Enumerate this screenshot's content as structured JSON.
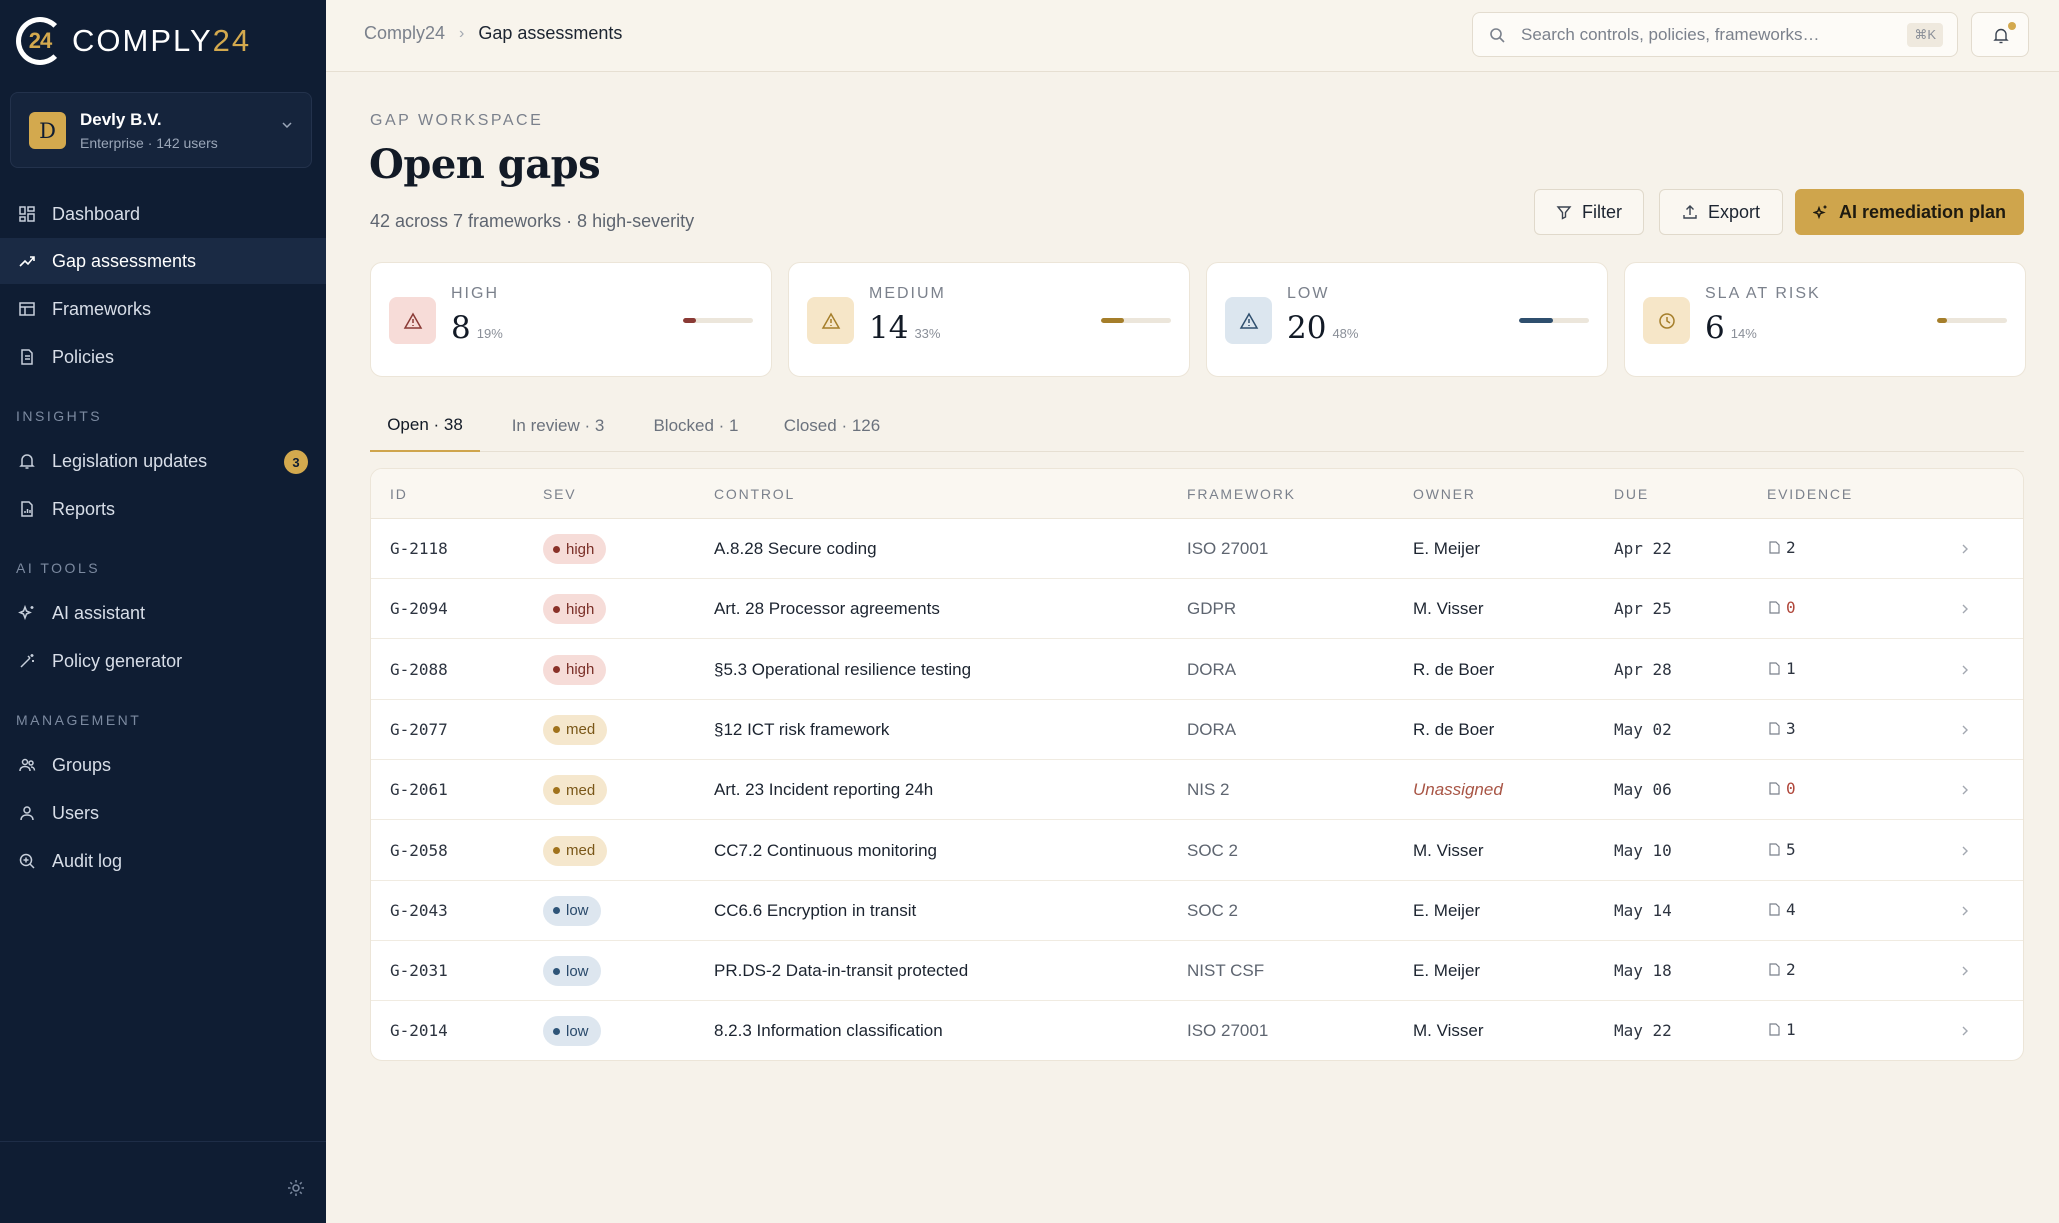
{
  "brand": {
    "mark": "24",
    "name_main": "COMPLY",
    "name_accent": "24"
  },
  "org": {
    "initial": "D",
    "name": "Devly B.V.",
    "subtitle": "Enterprise · 142 users"
  },
  "nav": {
    "main": [
      {
        "label": "Dashboard",
        "icon": "grid-icon"
      },
      {
        "label": "Gap assessments",
        "icon": "trend-icon",
        "active": true
      },
      {
        "label": "Frameworks",
        "icon": "table-icon"
      },
      {
        "label": "Policies",
        "icon": "document-icon"
      }
    ],
    "insights_title": "INSIGHTS",
    "insights": [
      {
        "label": "Legislation updates",
        "icon": "bell-icon",
        "badge": "3"
      },
      {
        "label": "Reports",
        "icon": "report-icon"
      }
    ],
    "ai_title": "AI TOOLS",
    "ai": [
      {
        "label": "AI assistant",
        "icon": "sparkle-icon"
      },
      {
        "label": "Policy generator",
        "icon": "wand-icon"
      }
    ],
    "management_title": "MANAGEMENT",
    "management": [
      {
        "label": "Groups",
        "icon": "group-icon"
      },
      {
        "label": "Users",
        "icon": "user-icon"
      },
      {
        "label": "Audit log",
        "icon": "audit-icon"
      }
    ]
  },
  "breadcrumb": {
    "root": "Comply24",
    "separator": "›",
    "current": "Gap assessments"
  },
  "search": {
    "placeholder": "Search controls, policies, frameworks…",
    "shortcut": "⌘K"
  },
  "header": {
    "eyebrow": "GAP WORKSPACE",
    "title": "Open gaps",
    "subtitle": "42 across 7 frameworks · 8 high-severity"
  },
  "actions": {
    "filter": "Filter",
    "export": "Export",
    "ai_plan": "AI remediation plan"
  },
  "stats": [
    {
      "label": "HIGH",
      "value": "8",
      "pct": "19%",
      "fraction": 0.19,
      "color": "#8a3a35",
      "icon_bg": "#f7dcd8",
      "icon": "warning-icon"
    },
    {
      "label": "MEDIUM",
      "value": "14",
      "pct": "33%",
      "fraction": 0.33,
      "color": "#a57e2a",
      "icon_bg": "#f6e6c8",
      "icon": "warning-icon"
    },
    {
      "label": "LOW",
      "value": "20",
      "pct": "48%",
      "fraction": 0.48,
      "color": "#2f4f6e",
      "icon_bg": "#dce6ef",
      "icon": "warning-icon"
    },
    {
      "label": "SLA AT RISK",
      "value": "6",
      "pct": "14%",
      "fraction": 0.14,
      "color": "#a57e2a",
      "icon_bg": "#f6e6c8",
      "icon": "clock-icon"
    }
  ],
  "tabs": [
    {
      "label": "Open · 38",
      "active": true
    },
    {
      "label": "In review · 3"
    },
    {
      "label": "Blocked · 1"
    },
    {
      "label": "Closed · 126"
    }
  ],
  "table": {
    "columns": [
      "ID",
      "SEV",
      "CONTROL",
      "FRAMEWORK",
      "OWNER",
      "DUE",
      "EVIDENCE"
    ],
    "rows": [
      {
        "id": "G-2118",
        "sev": "high",
        "control": "A.8.28 Secure coding",
        "framework": "ISO 27001",
        "owner": "E. Meijer",
        "due": "Apr 22",
        "evidence": "2"
      },
      {
        "id": "G-2094",
        "sev": "high",
        "control": "Art. 28 Processor agreements",
        "framework": "GDPR",
        "owner": "M. Visser",
        "due": "Apr 25",
        "evidence": "0"
      },
      {
        "id": "G-2088",
        "sev": "high",
        "control": "§5.3 Operational resilience testing",
        "framework": "DORA",
        "owner": "R. de Boer",
        "due": "Apr 28",
        "evidence": "1"
      },
      {
        "id": "G-2077",
        "sev": "med",
        "control": "§12 ICT risk framework",
        "framework": "DORA",
        "owner": "R. de Boer",
        "due": "May 02",
        "evidence": "3"
      },
      {
        "id": "G-2061",
        "sev": "med",
        "control": "Art. 23 Incident reporting 24h",
        "framework": "NIS 2",
        "owner": "Unassigned",
        "due": "May 06",
        "evidence": "0"
      },
      {
        "id": "G-2058",
        "sev": "med",
        "control": "CC7.2 Continuous monitoring",
        "framework": "SOC 2",
        "owner": "M. Visser",
        "due": "May 10",
        "evidence": "5"
      },
      {
        "id": "G-2043",
        "sev": "low",
        "control": "CC6.6 Encryption in transit",
        "framework": "SOC 2",
        "owner": "E. Meijer",
        "due": "May 14",
        "evidence": "4"
      },
      {
        "id": "G-2031",
        "sev": "low",
        "control": "PR.DS-2 Data-in-transit protected",
        "framework": "NIST CSF",
        "owner": "E. Meijer",
        "due": "May 18",
        "evidence": "2"
      },
      {
        "id": "G-2014",
        "sev": "low",
        "control": "8.2.3 Information classification",
        "framework": "ISO 27001",
        "owner": "M. Visser",
        "due": "May 22",
        "evidence": "1"
      }
    ]
  }
}
